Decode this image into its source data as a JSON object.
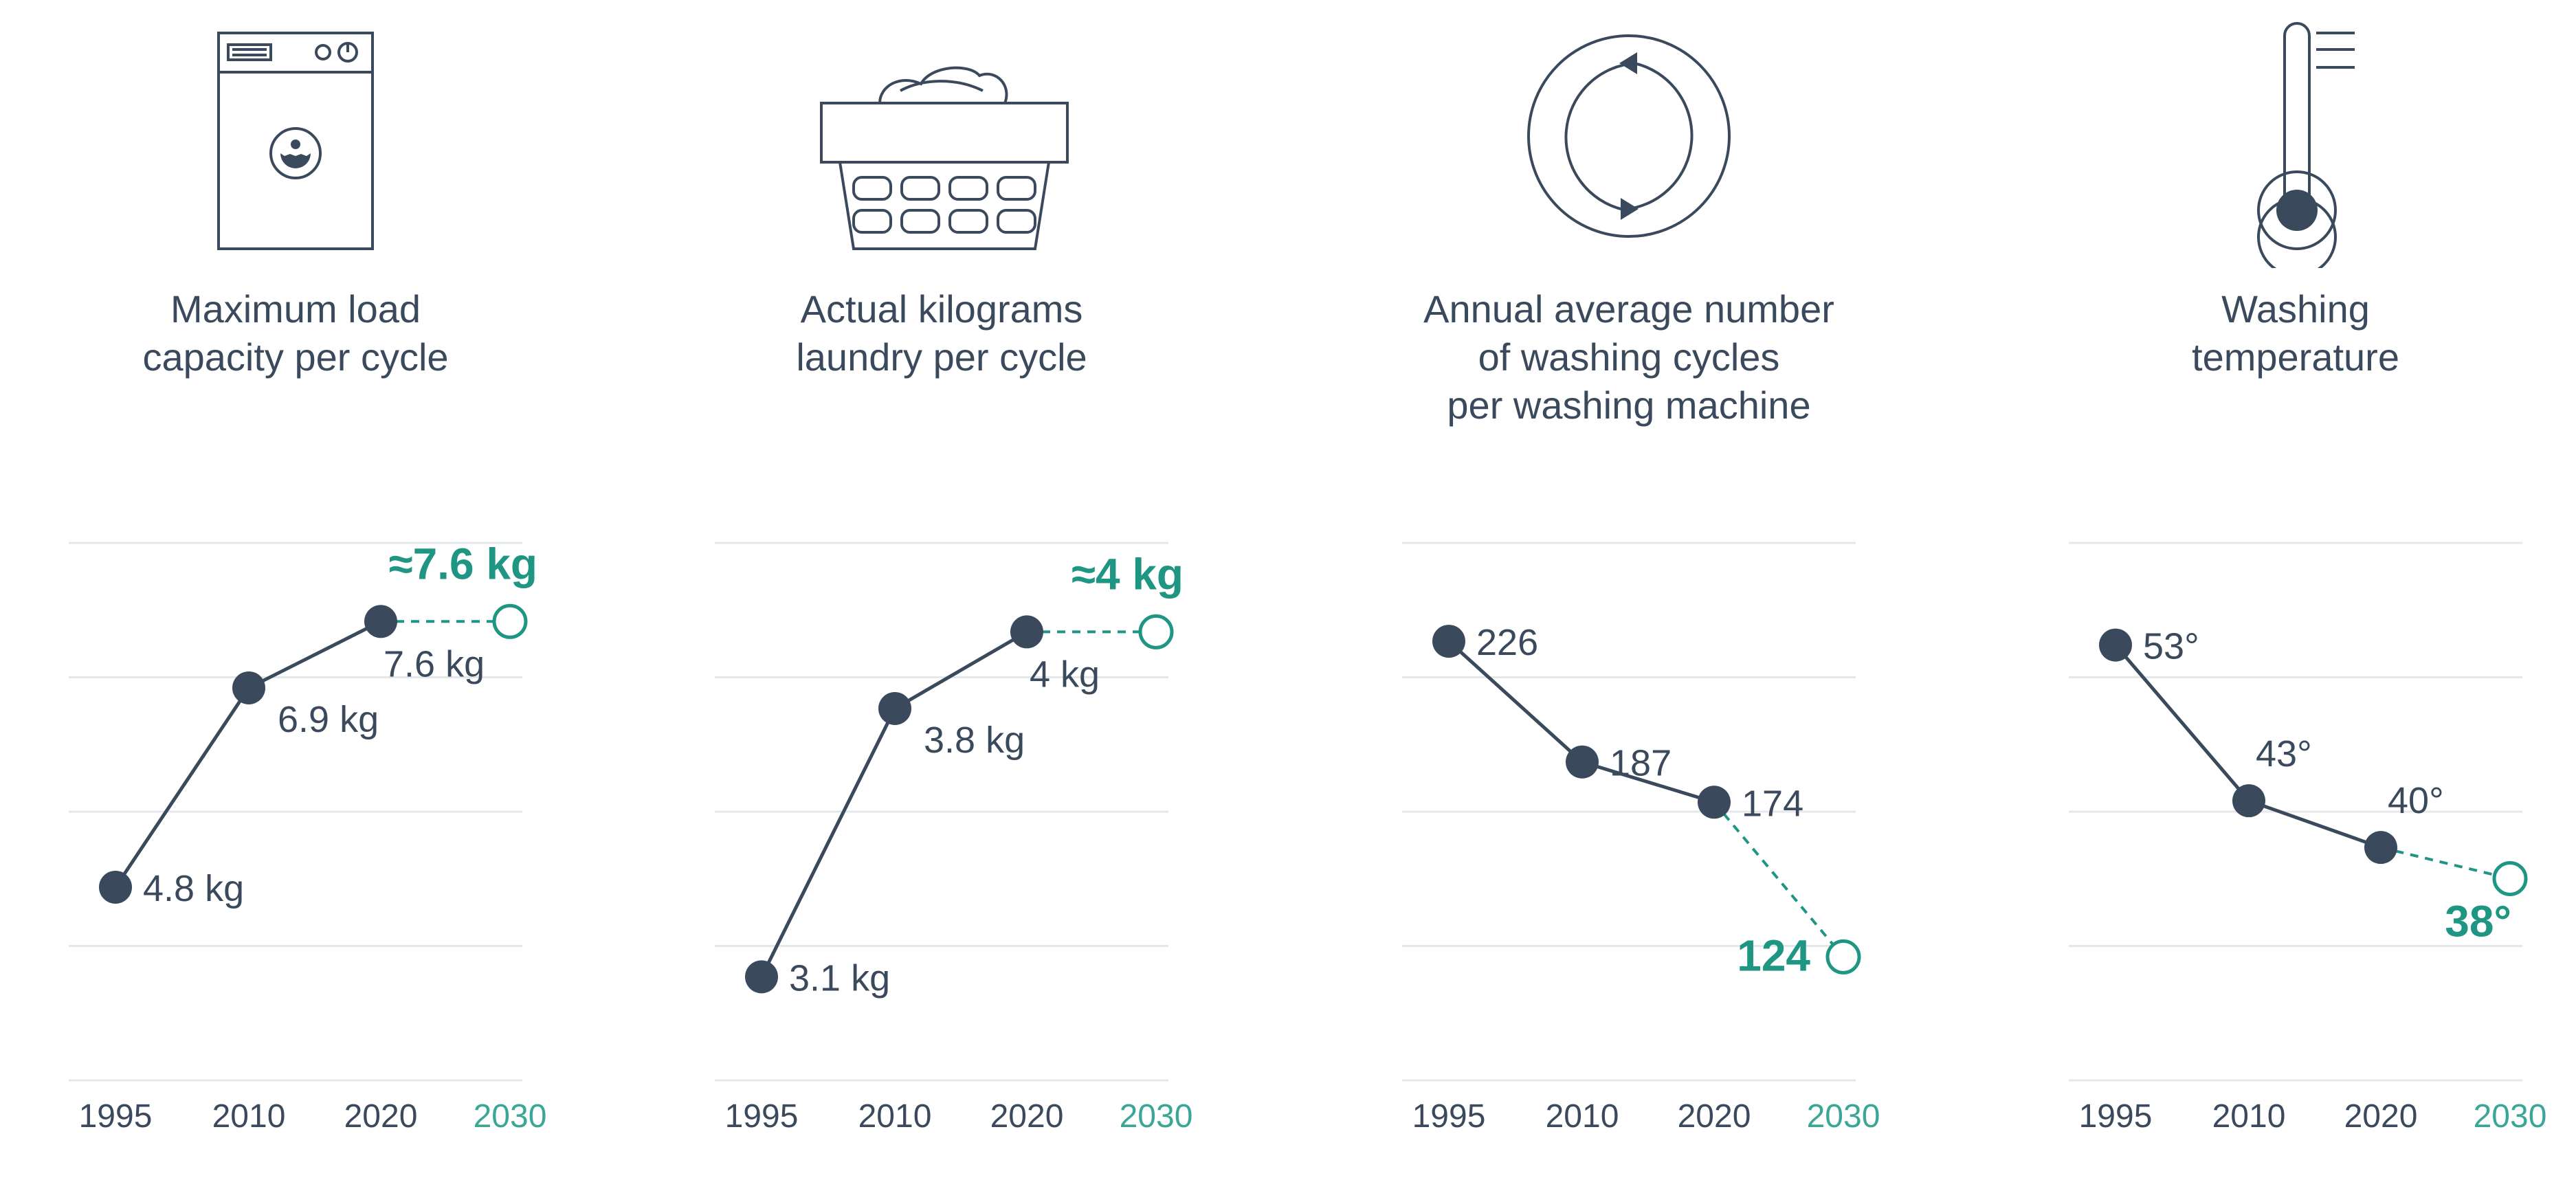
{
  "colors": {
    "dark": "#3a4a5c",
    "accent": "#1f9683",
    "grid": "#e4e8ec",
    "projection_label": "#3aa796"
  },
  "chart_data": [
    {
      "type": "line",
      "icon": "washing-machine-icon",
      "title_lines": [
        "Maximum load",
        "capacity per cycle"
      ],
      "categories": [
        "1995",
        "2010",
        "2020",
        "2030"
      ],
      "values": [
        4.8,
        6.9,
        7.6,
        7.6
      ],
      "point_labels": [
        "4.8 kg",
        "6.9 kg",
        "7.6 kg",
        ""
      ],
      "projection_label": "≈7.6 kg",
      "projected_from_index": 2,
      "ylim": [
        3.25,
        8.5
      ],
      "grid": true,
      "label_pos": [
        "right",
        "below-right",
        "below",
        ""
      ],
      "proj_pos": "above"
    },
    {
      "type": "line",
      "icon": "laundry-basket-icon",
      "title_lines": [
        "Actual kilograms",
        "laundry per cycle"
      ],
      "categories": [
        "1995",
        "2010",
        "2020",
        "2030"
      ],
      "values": [
        3.1,
        3.8,
        4.0,
        4.0
      ],
      "point_labels": [
        "3.1 kg",
        "3.8 kg",
        "4 kg",
        ""
      ],
      "projection_label": "≈4 kg",
      "projected_from_index": 2,
      "ylim": [
        2.95,
        4.25
      ],
      "grid": true,
      "label_pos": [
        "right",
        "below-right",
        "below",
        ""
      ],
      "proj_pos": "above"
    },
    {
      "type": "line",
      "icon": "cycle-arrows-icon",
      "title_lines": [
        "Annual average number",
        "of washing cycles",
        "per washing machine"
      ],
      "categories": [
        "1995",
        "2010",
        "2020",
        "2030"
      ],
      "values": [
        226,
        187,
        174,
        124
      ],
      "point_labels": [
        "226",
        "187",
        "174",
        ""
      ],
      "projection_label": "124",
      "projected_from_index": 2,
      "ylim": [
        99,
        260
      ],
      "grid": true,
      "label_pos": [
        "right",
        "right",
        "right",
        ""
      ],
      "proj_pos": "left"
    },
    {
      "type": "line",
      "icon": "thermometer-icon",
      "title_lines": [
        "Washing",
        "temperature"
      ],
      "categories": [
        "1995",
        "2010",
        "2020",
        "2030"
      ],
      "values": [
        53,
        43,
        40,
        38
      ],
      "point_labels": [
        "53°",
        "43°",
        "40°",
        ""
      ],
      "projection_label": "38°",
      "projected_from_index": 2,
      "ylim": [
        28,
        60
      ],
      "grid": true,
      "label_pos": [
        "right",
        "above",
        "above",
        ""
      ],
      "proj_pos": "below-left"
    }
  ]
}
